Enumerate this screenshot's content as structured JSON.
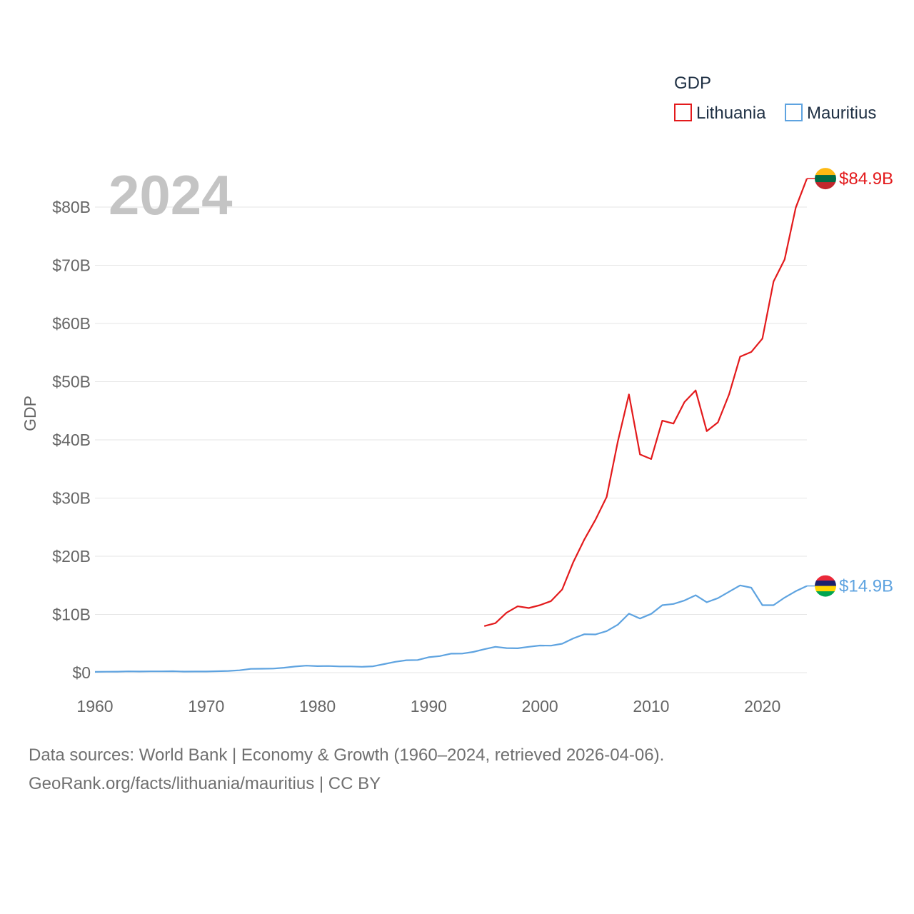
{
  "chart_data": {
    "type": "line",
    "year_label": "2024",
    "ylabel": "GDP",
    "xlim": [
      1960,
      2024
    ],
    "ylim": [
      0,
      85
    ],
    "y_unit": "billion USD",
    "x_ticks": [
      1960,
      1970,
      1980,
      1990,
      2000,
      2010,
      2020
    ],
    "y_ticks": [
      {
        "value": 0,
        "label": "$0"
      },
      {
        "value": 10,
        "label": "$10B"
      },
      {
        "value": 20,
        "label": "$20B"
      },
      {
        "value": 30,
        "label": "$30B"
      },
      {
        "value": 40,
        "label": "$40B"
      },
      {
        "value": 50,
        "label": "$50B"
      },
      {
        "value": 60,
        "label": "$60B"
      },
      {
        "value": 70,
        "label": "$70B"
      },
      {
        "value": 80,
        "label": "$80B"
      }
    ],
    "legend": {
      "title": "GDP",
      "position": "top-right"
    },
    "series": [
      {
        "name": "Lithuania",
        "color": "#e31a1c",
        "end_label": "$84.9B",
        "x": [
          1995,
          1996,
          1997,
          1998,
          1999,
          2000,
          2001,
          2002,
          2003,
          2004,
          2005,
          2006,
          2007,
          2008,
          2009,
          2010,
          2011,
          2012,
          2013,
          2014,
          2015,
          2016,
          2017,
          2018,
          2019,
          2020,
          2021,
          2022,
          2023,
          2024
        ],
        "values": [
          8.0,
          8.5,
          10.3,
          11.4,
          11.1,
          11.6,
          12.3,
          14.3,
          19.0,
          22.9,
          26.3,
          30.2,
          39.7,
          47.8,
          37.5,
          36.7,
          43.3,
          42.8,
          46.5,
          48.5,
          41.5,
          43.0,
          47.8,
          54.3,
          55.1,
          57.4,
          67.2,
          71.0,
          79.9,
          84.9
        ]
      },
      {
        "name": "Mauritius",
        "color": "#5ea3e0",
        "end_label": "$14.9B",
        "x": [
          1960,
          1961,
          1962,
          1963,
          1964,
          1965,
          1966,
          1967,
          1968,
          1969,
          1970,
          1971,
          1972,
          1973,
          1974,
          1975,
          1976,
          1977,
          1978,
          1979,
          1980,
          1981,
          1982,
          1983,
          1984,
          1985,
          1986,
          1987,
          1988,
          1989,
          1990,
          1991,
          1992,
          1993,
          1994,
          1995,
          1996,
          1997,
          1998,
          1999,
          2000,
          2001,
          2002,
          2003,
          2004,
          2005,
          2006,
          2007,
          2008,
          2009,
          2010,
          2011,
          2012,
          2013,
          2014,
          2015,
          2016,
          2017,
          2018,
          2019,
          2020,
          2021,
          2022,
          2023,
          2024
        ],
        "values": [
          0.14,
          0.16,
          0.17,
          0.22,
          0.2,
          0.22,
          0.22,
          0.24,
          0.19,
          0.2,
          0.2,
          0.25,
          0.3,
          0.4,
          0.65,
          0.68,
          0.7,
          0.85,
          1.05,
          1.2,
          1.12,
          1.14,
          1.07,
          1.07,
          1.01,
          1.09,
          1.47,
          1.87,
          2.13,
          2.17,
          2.65,
          2.85,
          3.26,
          3.28,
          3.56,
          4.03,
          4.44,
          4.22,
          4.19,
          4.44,
          4.66,
          4.64,
          4.97,
          5.89,
          6.6,
          6.57,
          7.14,
          8.25,
          10.13,
          9.3,
          10.1,
          11.6,
          11.8,
          12.4,
          13.3,
          12.1,
          12.8,
          13.9,
          15.0,
          14.6,
          11.6,
          11.6,
          12.9,
          14.0,
          14.9
        ]
      }
    ]
  },
  "source": {
    "line1": "Data sources: World Bank | Economy & Growth (1960–2024, retrieved 2026-04-06).",
    "line2": "GeoRank.org/facts/lithuania/mauritius | CC BY"
  }
}
